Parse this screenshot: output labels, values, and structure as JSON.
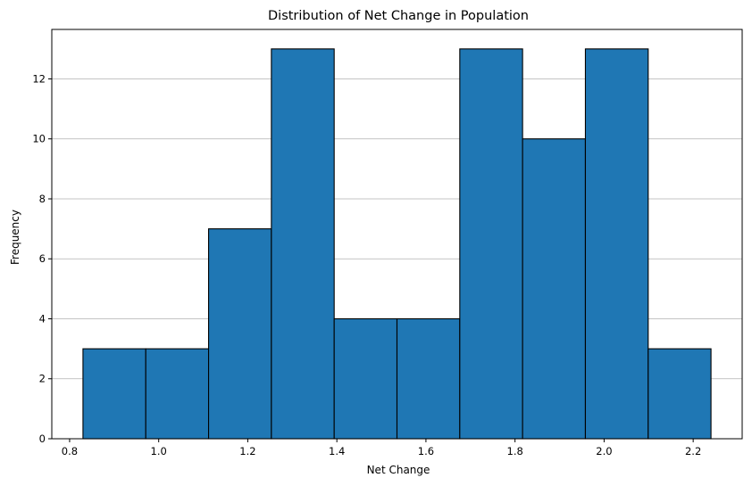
{
  "chart_data": {
    "type": "bar",
    "subtype": "histogram",
    "title": "Distribution of Net Change in Population",
    "xlabel": "Net Change",
    "ylabel": "Frequency",
    "xlim": [
      0.76,
      2.31
    ],
    "ylim": [
      0,
      13.65
    ],
    "xticks": [
      "0.8",
      "1.0",
      "1.2",
      "1.4",
      "1.6",
      "1.8",
      "2.0",
      "2.2"
    ],
    "yticks": [
      "0",
      "2",
      "4",
      "6",
      "8",
      "10",
      "12"
    ],
    "bins": [
      {
        "start": 0.83,
        "end": 0.971,
        "count": 3
      },
      {
        "start": 0.971,
        "end": 1.112,
        "count": 3
      },
      {
        "start": 1.112,
        "end": 1.253,
        "count": 7
      },
      {
        "start": 1.253,
        "end": 1.394,
        "count": 13
      },
      {
        "start": 1.394,
        "end": 1.535,
        "count": 4
      },
      {
        "start": 1.535,
        "end": 1.676,
        "count": 4
      },
      {
        "start": 1.676,
        "end": 1.817,
        "count": 13
      },
      {
        "start": 1.817,
        "end": 1.958,
        "count": 10
      },
      {
        "start": 1.958,
        "end": 2.099,
        "count": 13
      },
      {
        "start": 2.099,
        "end": 2.24,
        "count": 3
      }
    ],
    "grid": {
      "y": true,
      "x": false
    },
    "colors": {
      "bar_fill": "#1f77b4",
      "bar_edge": "#000000",
      "grid": "#b0b0b0"
    }
  }
}
